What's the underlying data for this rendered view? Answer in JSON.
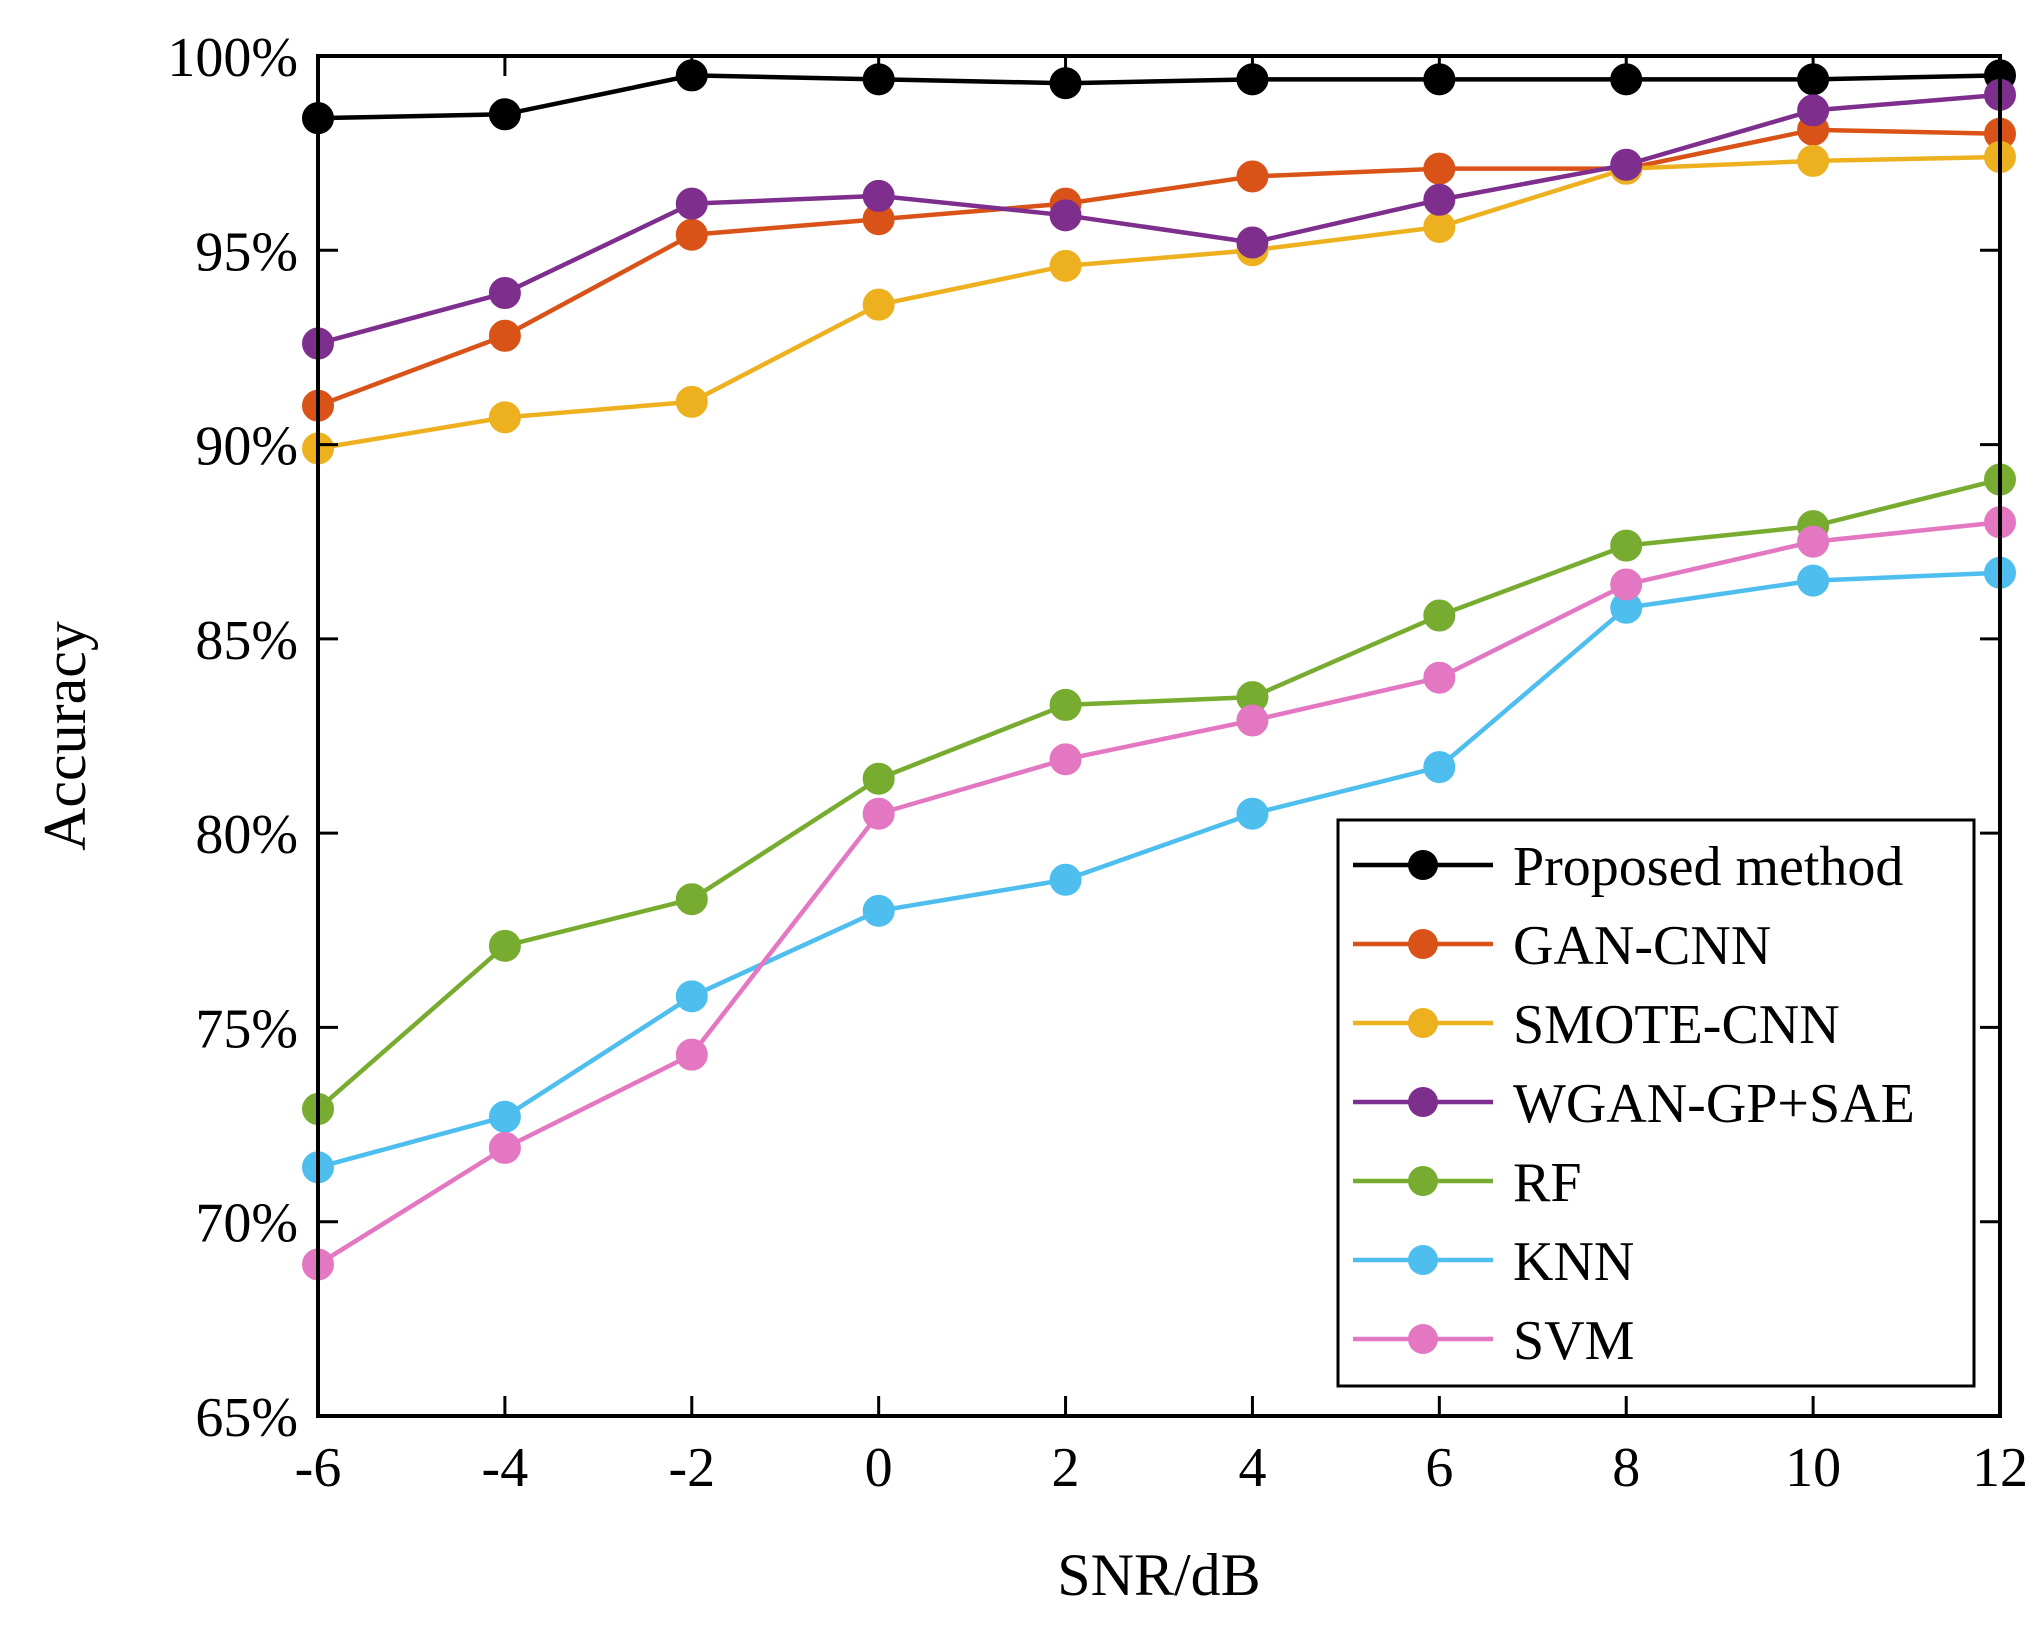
{
  "chart_data": {
    "type": "line",
    "title": "",
    "xlabel": "SNR/dB",
    "ylabel": "Accuracy",
    "xlim": [
      -6,
      12
    ],
    "ylim": [
      65,
      100
    ],
    "x": [
      -6,
      -4,
      -2,
      0,
      2,
      4,
      6,
      8,
      10,
      12
    ],
    "x_tick_labels": [
      "-6",
      "-4",
      "-2",
      "0",
      "2",
      "4",
      "6",
      "8",
      "10",
      "12"
    ],
    "y_ticks": [
      65,
      70,
      75,
      80,
      85,
      90,
      95,
      100
    ],
    "y_tick_labels": [
      "65%",
      "70%",
      "75%",
      "80%",
      "85%",
      "90%",
      "95%",
      "100%"
    ],
    "grid": false,
    "legend_position": "bottom-right",
    "series": [
      {
        "name": "Proposed method",
        "color": "#000000",
        "values": [
          98.4,
          98.5,
          99.5,
          99.4,
          99.3,
          99.4,
          99.4,
          99.4,
          99.4,
          99.5
        ]
      },
      {
        "name": "GAN-CNN",
        "color": "#d95319",
        "values": [
          91.0,
          92.8,
          95.4,
          95.8,
          96.2,
          96.9,
          97.1,
          97.1,
          98.1,
          98.0
        ]
      },
      {
        "name": "SMOTE-CNN",
        "color": "#edb120",
        "values": [
          89.9,
          90.7,
          91.1,
          93.6,
          94.6,
          95.0,
          95.6,
          97.1,
          97.3,
          97.4
        ]
      },
      {
        "name": "WGAN-GP+SAE",
        "color": "#7e2f8e",
        "values": [
          92.6,
          93.9,
          96.2,
          96.4,
          95.9,
          95.2,
          96.3,
          97.2,
          98.6,
          99.0
        ]
      },
      {
        "name": "RF",
        "color": "#77ac30",
        "values": [
          72.9,
          77.1,
          78.3,
          81.4,
          83.3,
          83.5,
          85.6,
          87.4,
          87.9,
          89.1
        ]
      },
      {
        "name": "KNN",
        "color": "#4dbeee",
        "values": [
          71.4,
          72.7,
          75.8,
          78.0,
          78.8,
          80.5,
          81.7,
          85.8,
          86.5,
          86.7
        ]
      },
      {
        "name": "SVM",
        "color": "#e377c2",
        "values": [
          68.9,
          71.9,
          74.3,
          80.5,
          81.9,
          82.9,
          84.0,
          86.4,
          87.5,
          88.0
        ]
      }
    ]
  }
}
